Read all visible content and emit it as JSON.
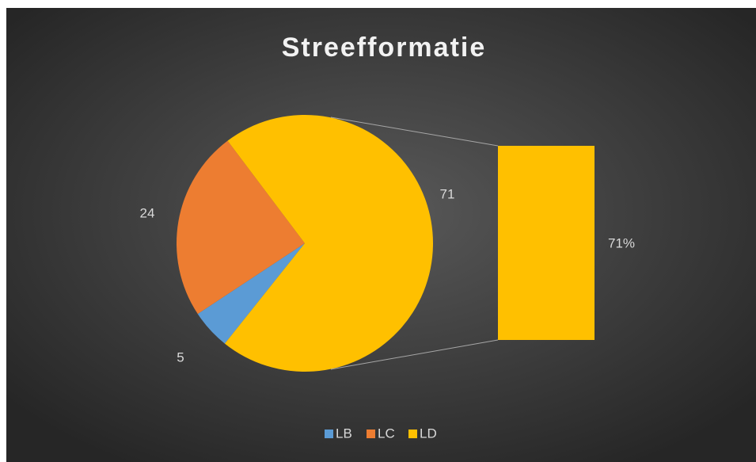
{
  "chart_data": {
    "type": "pie_of_bar",
    "title": "Streefformatie",
    "categories": [
      "LB",
      "LC",
      "LD"
    ],
    "values": [
      5,
      24,
      71
    ],
    "colors": [
      "#5b9bd5",
      "#ed7d31",
      "#ffc000"
    ],
    "bar_of_pie": {
      "values": [
        71
      ],
      "value_labels": [
        "71%"
      ],
      "color": "#ffc000"
    },
    "legend": "bottom"
  }
}
